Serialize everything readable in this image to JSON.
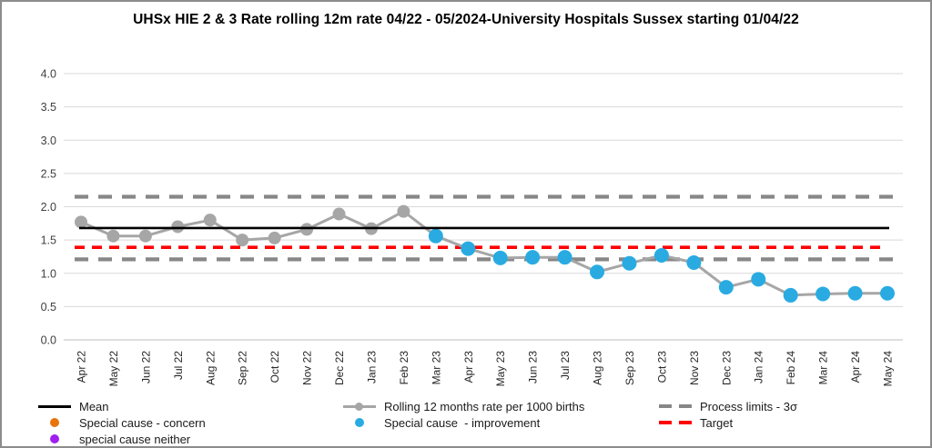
{
  "title": "UHSx HIE 2 & 3 Rate rolling 12m rate 04/22 - 05/2024-University Hospitals Sussex starting 01/04/22",
  "chart_data": {
    "type": "line",
    "title": "UHSx HIE 2 & 3 Rate rolling 12m rate 04/22 - 05/2024-University Hospitals Sussex starting 01/04/22",
    "xlabel": "",
    "ylabel": "",
    "ylim": [
      0.0,
      4.0
    ],
    "ytick_step": 0.5,
    "grid": true,
    "legend_position": "bottom",
    "categories": [
      "Apr 22",
      "May 22",
      "Jun 22",
      "Jul 22",
      "Aug 22",
      "Sep 22",
      "Oct 22",
      "Nov 22",
      "Dec 22",
      "Jan 23",
      "Feb 23",
      "Mar 23",
      "Apr 23",
      "May 23",
      "Jun 23",
      "Jul 23",
      "Aug 23",
      "Sep 23",
      "Oct 23",
      "Nov 23",
      "Dec 23",
      "Jan 24",
      "Feb 24",
      "Mar 24",
      "Apr 24",
      "May 24"
    ],
    "series": [
      {
        "name": "Rolling 12 months rate per 1000 births",
        "color": "#A6A6A6",
        "values": [
          1.77,
          1.56,
          1.56,
          1.7,
          1.8,
          1.5,
          1.53,
          1.66,
          1.89,
          1.67,
          1.93,
          1.56,
          1.37,
          1.23,
          1.24,
          1.24,
          1.02,
          1.15,
          1.27,
          1.16,
          0.79,
          0.91,
          0.67,
          0.69,
          0.7,
          0.7
        ],
        "point_types": [
          "common",
          "common",
          "common",
          "common",
          "common",
          "common",
          "common",
          "common",
          "common",
          "common",
          "common",
          "improvement",
          "improvement",
          "improvement",
          "improvement",
          "improvement",
          "improvement",
          "improvement",
          "improvement",
          "improvement",
          "improvement",
          "improvement",
          "improvement",
          "improvement",
          "improvement",
          "improvement"
        ]
      }
    ],
    "point_colors": {
      "common": "#A6A6A6",
      "concern": "#E8740C",
      "neither": "#A020F0",
      "improvement": "#29ABE2"
    },
    "reference_lines": [
      {
        "name": "Mean",
        "value": 1.68,
        "color": "#000000",
        "style": "solid"
      },
      {
        "name": "Process limit upper - 3σ",
        "value": 2.15,
        "color": "#878787",
        "style": "dashed-thick"
      },
      {
        "name": "Process limit lower - 3σ",
        "value": 1.21,
        "color": "#878787",
        "style": "dashed-thick"
      },
      {
        "name": "Target",
        "value": 1.39,
        "color": "#FF0000",
        "style": "dashed"
      }
    ]
  },
  "legend": {
    "items": [
      {
        "label": "Mean",
        "color": "#000000"
      },
      {
        "label": "Special cause - concern",
        "color": "#E8740C"
      },
      {
        "label": "special cause neither",
        "color": "#A020F0"
      },
      {
        "label": "Rolling 12 months rate per 1000 births",
        "color": "#A6A6A6"
      },
      {
        "label": "Special cause  - improvement",
        "color": "#29ABE2"
      },
      {
        "label": "Process limits - 3σ",
        "color": "#878787"
      },
      {
        "label": "Target",
        "color": "#FF0000"
      }
    ]
  }
}
